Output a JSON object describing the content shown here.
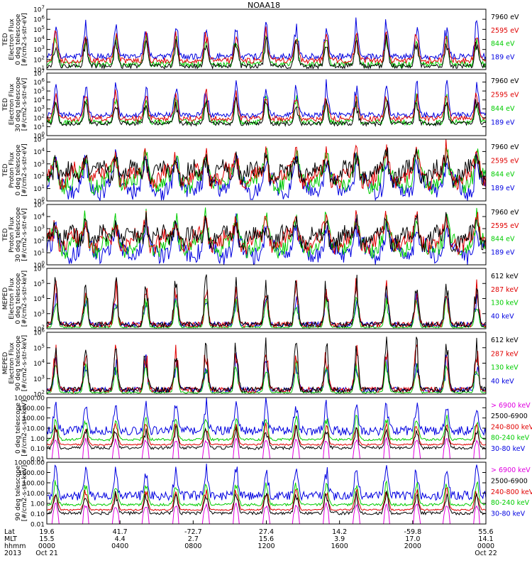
{
  "title": "NOAA18",
  "panels": [
    {
      "id": "ted-e-0",
      "ylabel": [
        "TED",
        "Electron Flux",
        "0 deg telescope",
        "[#/cm2-s-str-eV]"
      ],
      "scale": "log",
      "ylim": [
        10,
        10000000
      ],
      "yticks": [
        {
          "v": 10,
          "base": "10",
          "exp": "1"
        },
        {
          "v": 100,
          "base": "10",
          "exp": "2"
        },
        {
          "v": 1000,
          "base": "10",
          "exp": "3"
        },
        {
          "v": 10000,
          "base": "10",
          "exp": "4"
        },
        {
          "v": 100000,
          "base": "10",
          "exp": "5"
        },
        {
          "v": 1000000,
          "base": "10",
          "exp": "6"
        },
        {
          "v": 10000000,
          "base": "10",
          "exp": "7"
        }
      ],
      "legend": [
        {
          "label": "7960 eV",
          "color": "#000000"
        },
        {
          "label": "2595 eV",
          "color": "#e00000"
        },
        {
          "label": "844 eV",
          "color": "#00cc00"
        },
        {
          "label": "189 eV",
          "color": "#0000e0"
        }
      ]
    },
    {
      "id": "ted-e-30",
      "ylabel": [
        "TED",
        "Electron Flux",
        "30 deg telescope",
        "[#/cm2-s-str-eV]"
      ],
      "scale": "log",
      "ylim": [
        1,
        10000000
      ],
      "yticks": [
        {
          "v": 1,
          "base": "10",
          "exp": "0"
        },
        {
          "v": 10,
          "base": "10",
          "exp": "1"
        },
        {
          "v": 100,
          "base": "10",
          "exp": "2"
        },
        {
          "v": 1000,
          "base": "10",
          "exp": "3"
        },
        {
          "v": 10000,
          "base": "10",
          "exp": "4"
        },
        {
          "v": 100000,
          "base": "10",
          "exp": "5"
        },
        {
          "v": 1000000,
          "base": "10",
          "exp": "6"
        },
        {
          "v": 10000000,
          "base": "10",
          "exp": "7"
        }
      ],
      "legend": [
        {
          "label": "7960 eV",
          "color": "#000000"
        },
        {
          "label": "2595 eV",
          "color": "#e00000"
        },
        {
          "label": "844 eV",
          "color": "#00cc00"
        },
        {
          "label": "189 eV",
          "color": "#0000e0"
        }
      ]
    },
    {
      "id": "ted-p-0",
      "ylabel": [
        "TED",
        "Proton Flux",
        "0 deg telescope",
        "[#/cm2-s-str-eV]"
      ],
      "scale": "log",
      "ylim": [
        1,
        100000
      ],
      "yticks": [
        {
          "v": 1,
          "base": "10",
          "exp": "0"
        },
        {
          "v": 10,
          "base": "10",
          "exp": "1"
        },
        {
          "v": 100,
          "base": "10",
          "exp": "2"
        },
        {
          "v": 1000,
          "base": "10",
          "exp": "3"
        },
        {
          "v": 10000,
          "base": "10",
          "exp": "4"
        },
        {
          "v": 100000,
          "base": "10",
          "exp": "5"
        }
      ],
      "legend": [
        {
          "label": "7960 eV",
          "color": "#000000"
        },
        {
          "label": "2595 eV",
          "color": "#e00000"
        },
        {
          "label": "844 eV",
          "color": "#00cc00"
        },
        {
          "label": "189 eV",
          "color": "#0000e0"
        }
      ]
    },
    {
      "id": "ted-p-30",
      "ylabel": [
        "TED",
        "Proton Flux",
        "30 deg telescope",
        "[#/cm2-s-str-eV]"
      ],
      "scale": "log",
      "ylim": [
        1,
        100000
      ],
      "yticks": [
        {
          "v": 1,
          "base": "10",
          "exp": "0"
        },
        {
          "v": 10,
          "base": "10",
          "exp": "1"
        },
        {
          "v": 100,
          "base": "10",
          "exp": "2"
        },
        {
          "v": 1000,
          "base": "10",
          "exp": "3"
        },
        {
          "v": 10000,
          "base": "10",
          "exp": "4"
        },
        {
          "v": 100000,
          "base": "10",
          "exp": "5"
        }
      ],
      "legend": [
        {
          "label": "7960 eV",
          "color": "#000000"
        },
        {
          "label": "2595 eV",
          "color": "#e00000"
        },
        {
          "label": "844 eV",
          "color": "#00cc00"
        },
        {
          "label": "189 eV",
          "color": "#0000e0"
        }
      ]
    },
    {
      "id": "meped-e-0",
      "ylabel": [
        "MEPED",
        "Electron Flux",
        "0 deg telescope",
        "[#/cm2-s-str-keV]"
      ],
      "scale": "log",
      "ylim": [
        100,
        1000000
      ],
      "yticks": [
        {
          "v": 100,
          "base": "10",
          "exp": "2"
        },
        {
          "v": 1000,
          "base": "10",
          "exp": "3"
        },
        {
          "v": 10000,
          "base": "10",
          "exp": "4"
        },
        {
          "v": 100000,
          "base": "10",
          "exp": "5"
        },
        {
          "v": 1000000,
          "base": "10",
          "exp": "6"
        }
      ],
      "legend": [
        {
          "label": "612 keV",
          "color": "#000000"
        },
        {
          "label": "287 keV",
          "color": "#e00000"
        },
        {
          "label": "130 keV",
          "color": "#00cc00"
        },
        {
          "label": "40 keV",
          "color": "#0000e0"
        }
      ]
    },
    {
      "id": "meped-e-90",
      "ylabel": [
        "MEPED",
        "Electron Flux",
        "90 deg telescope",
        "[#/cm2-s-str-keV]"
      ],
      "scale": "log",
      "ylim": [
        100,
        1000000
      ],
      "yticks": [
        {
          "v": 100,
          "base": "10",
          "exp": "2"
        },
        {
          "v": 1000,
          "base": "10",
          "exp": "3"
        },
        {
          "v": 10000,
          "base": "10",
          "exp": "4"
        },
        {
          "v": 100000,
          "base": "10",
          "exp": "5"
        },
        {
          "v": 1000000,
          "base": "10",
          "exp": "6"
        }
      ],
      "legend": [
        {
          "label": "612 keV",
          "color": "#000000"
        },
        {
          "label": "287 keV",
          "color": "#e00000"
        },
        {
          "label": "130 keV",
          "color": "#00cc00"
        },
        {
          "label": "40 keV",
          "color": "#0000e0"
        }
      ]
    },
    {
      "id": "meped-p-0",
      "ylabel": [
        "",
        "",
        "0 deg telescope",
        "[#/cm2-s-str-keV]"
      ],
      "scale": "log",
      "ylim": [
        0.01,
        10000
      ],
      "yticks": [
        {
          "v": 0.01,
          "text": "0.01"
        },
        {
          "v": 0.1,
          "text": "0.10"
        },
        {
          "v": 1,
          "text": "1.00"
        },
        {
          "v": 10,
          "text": "10.00"
        },
        {
          "v": 100,
          "text": "100.00"
        },
        {
          "v": 1000,
          "text": "1000.00"
        },
        {
          "v": 10000,
          "text": "10000.00"
        }
      ],
      "legend": [
        {
          "label": "> 6900 keV",
          "color": "#e000e0"
        },
        {
          "label": "2500-6900",
          "color": "#000000"
        },
        {
          "label": "240-800 keV",
          "color": "#e00000"
        },
        {
          "label": "80-240 keV",
          "color": "#00cc00"
        },
        {
          "label": "30-80 keV",
          "color": "#0000e0"
        }
      ]
    },
    {
      "id": "meped-p-90",
      "ylabel": [
        "",
        "",
        "90 deg telescope",
        "[#/cm2-s-str-keV]"
      ],
      "scale": "log",
      "ylim": [
        0.01,
        10000
      ],
      "yticks": [
        {
          "v": 0.01,
          "text": "0.01"
        },
        {
          "v": 0.1,
          "text": "0.10"
        },
        {
          "v": 1,
          "text": "1.00"
        },
        {
          "v": 10,
          "text": "10.00"
        },
        {
          "v": 100,
          "text": "100.00"
        },
        {
          "v": 1000,
          "text": "1000.00"
        },
        {
          "v": 10000,
          "text": "10000.00"
        }
      ],
      "legend": [
        {
          "label": "> 6900 keV",
          "color": "#e000e0"
        },
        {
          "label": "2500-6900",
          "color": "#000000"
        },
        {
          "label": "240-800 keV",
          "color": "#e00000"
        },
        {
          "label": "80-240 keV",
          "color": "#00cc00"
        },
        {
          "label": "30-80 keV",
          "color": "#0000e0"
        }
      ]
    }
  ],
  "xaxis": {
    "row_labels": [
      "Lat",
      "MLT",
      "hhmm",
      "2013"
    ],
    "ticks": [
      {
        "lat": "19.6",
        "mlt": "15.5",
        "hhmm": "0000",
        "date": "Oct 21"
      },
      {
        "lat": "41.7",
        "mlt": "4.4",
        "hhmm": "0400",
        "date": ""
      },
      {
        "lat": "-72.7",
        "mlt": "2.7",
        "hhmm": "0800",
        "date": ""
      },
      {
        "lat": "27.4",
        "mlt": "15.6",
        "hhmm": "1200",
        "date": ""
      },
      {
        "lat": "14.2",
        "mlt": "3.9",
        "hhmm": "1600",
        "date": ""
      },
      {
        "lat": "-59.8",
        "mlt": "17.0",
        "hhmm": "2000",
        "date": ""
      },
      {
        "lat": "55.6",
        "mlt": "14.1",
        "hhmm": "0000",
        "date": "Oct 22"
      }
    ]
  },
  "chart_data": {
    "type": "line",
    "title": "NOAA18",
    "x": [
      "0000",
      "0400",
      "0800",
      "1200",
      "1600",
      "2000",
      "0000"
    ],
    "xlabel": "",
    "panels": [
      {
        "ylabel": "TED Electron Flux 0 deg telescope [#/cm2-s-str-eV]",
        "scale": "log",
        "ylim": [
          10,
          10000000
        ],
        "series": [
          {
            "name": "7960 eV",
            "color": "#000000"
          },
          {
            "name": "2595 eV",
            "color": "#e00000"
          },
          {
            "name": "844 eV",
            "color": "#00cc00"
          },
          {
            "name": "189 eV",
            "color": "#0000e0"
          }
        ]
      },
      {
        "ylabel": "TED Electron Flux 30 deg telescope [#/cm2-s-str-eV]",
        "scale": "log",
        "ylim": [
          1,
          10000000
        ],
        "series": [
          {
            "name": "7960 eV",
            "color": "#000000"
          },
          {
            "name": "2595 eV",
            "color": "#e00000"
          },
          {
            "name": "844 eV",
            "color": "#00cc00"
          },
          {
            "name": "189 eV",
            "color": "#0000e0"
          }
        ]
      },
      {
        "ylabel": "TED Proton Flux 0 deg telescope [#/cm2-s-str-eV]",
        "scale": "log",
        "ylim": [
          1,
          100000
        ],
        "series": [
          {
            "name": "7960 eV",
            "color": "#000000"
          },
          {
            "name": "2595 eV",
            "color": "#e00000"
          },
          {
            "name": "844 eV",
            "color": "#00cc00"
          },
          {
            "name": "189 eV",
            "color": "#0000e0"
          }
        ]
      },
      {
        "ylabel": "TED Proton Flux 30 deg telescope [#/cm2-s-str-eV]",
        "scale": "log",
        "ylim": [
          1,
          100000
        ],
        "series": [
          {
            "name": "7960 eV",
            "color": "#000000"
          },
          {
            "name": "2595 eV",
            "color": "#e00000"
          },
          {
            "name": "844 eV",
            "color": "#00cc00"
          },
          {
            "name": "189 eV",
            "color": "#0000e0"
          }
        ]
      },
      {
        "ylabel": "MEPED Electron Flux 0 deg telescope [#/cm2-s-str-keV]",
        "scale": "log",
        "ylim": [
          100,
          1000000
        ],
        "series": [
          {
            "name": "612 keV",
            "color": "#000000"
          },
          {
            "name": "287 keV",
            "color": "#e00000"
          },
          {
            "name": "130 keV",
            "color": "#00cc00"
          },
          {
            "name": "40 keV",
            "color": "#0000e0"
          }
        ]
      },
      {
        "ylabel": "MEPED Electron Flux 90 deg telescope [#/cm2-s-str-keV]",
        "scale": "log",
        "ylim": [
          100,
          1000000
        ],
        "series": [
          {
            "name": "612 keV",
            "color": "#000000"
          },
          {
            "name": "287 keV",
            "color": "#e00000"
          },
          {
            "name": "130 keV",
            "color": "#00cc00"
          },
          {
            "name": "40 keV",
            "color": "#0000e0"
          }
        ]
      },
      {
        "ylabel": "0 deg telescope [#/cm2-s-str-keV]",
        "scale": "log",
        "ylim": [
          0.01,
          10000
        ],
        "series": [
          {
            "name": "> 6900 keV",
            "color": "#e000e0"
          },
          {
            "name": "2500-6900",
            "color": "#000000"
          },
          {
            "name": "240-800 keV",
            "color": "#e00000"
          },
          {
            "name": "80-240 keV",
            "color": "#00cc00"
          },
          {
            "name": "30-80 keV",
            "color": "#0000e0"
          }
        ]
      },
      {
        "ylabel": "90 deg telescope [#/cm2-s-str-keV]",
        "scale": "log",
        "ylim": [
          0.01,
          10000
        ],
        "series": [
          {
            "name": "> 6900 keV",
            "color": "#e000e0"
          },
          {
            "name": "2500-6900",
            "color": "#000000"
          },
          {
            "name": "240-800 keV",
            "color": "#e00000"
          },
          {
            "name": "80-240 keV",
            "color": "#00cc00"
          },
          {
            "name": "30-80 keV",
            "color": "#0000e0"
          }
        ]
      }
    ]
  }
}
